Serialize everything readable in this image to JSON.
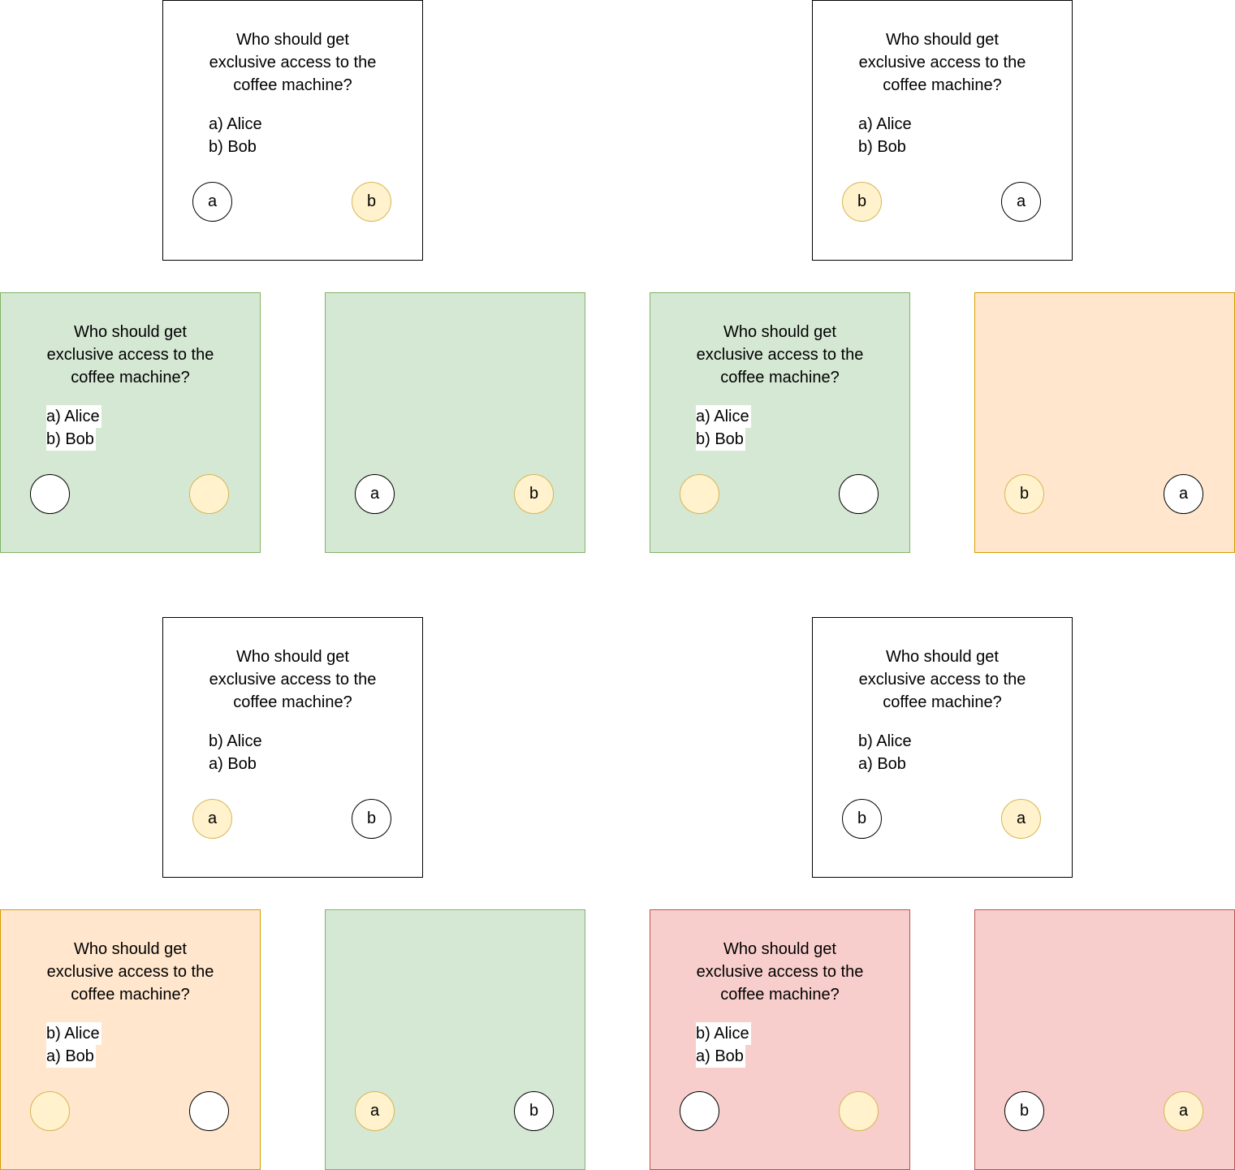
{
  "question_lines": [
    "Who should get",
    "exclusive access to the",
    "coffee machine?"
  ],
  "colors": {
    "white": "#ffffff",
    "green": "#d5e8d4",
    "orange": "#ffe6cc",
    "red": "#f8cecc",
    "yellow_circle": "#fff2cc"
  },
  "cards": [
    {
      "id": "q1-top-left",
      "options": [
        "a) Alice",
        "b) Bob"
      ],
      "circles": [
        "a",
        "b"
      ]
    },
    {
      "id": "q1-top-right",
      "options": [
        "a) Alice",
        "b) Bob"
      ],
      "circles": [
        "b",
        "a"
      ]
    },
    {
      "id": "r1-a",
      "options": [
        "a) Alice",
        "b) Bob"
      ],
      "circles": [
        "",
        ""
      ]
    },
    {
      "id": "r1-b",
      "circles": [
        "a",
        "b"
      ]
    },
    {
      "id": "r1-c",
      "options": [
        "a) Alice",
        "b) Bob"
      ],
      "circles": [
        "",
        ""
      ]
    },
    {
      "id": "r1-d",
      "circles": [
        "b",
        "a"
      ]
    },
    {
      "id": "q2-left",
      "options": [
        "b) Alice",
        "a) Bob"
      ],
      "circles": [
        "a",
        "b"
      ]
    },
    {
      "id": "q2-right",
      "options": [
        "b) Alice",
        "a) Bob"
      ],
      "circles": [
        "b",
        "a"
      ]
    },
    {
      "id": "r2-a",
      "options": [
        "b) Alice",
        "a) Bob"
      ],
      "circles": [
        "",
        ""
      ]
    },
    {
      "id": "r2-b",
      "circles": [
        "a",
        "b"
      ]
    },
    {
      "id": "r2-c",
      "options": [
        "b) Alice",
        "a) Bob"
      ],
      "circles": [
        "",
        ""
      ]
    },
    {
      "id": "r2-d",
      "circles": [
        "b",
        "a"
      ]
    }
  ]
}
